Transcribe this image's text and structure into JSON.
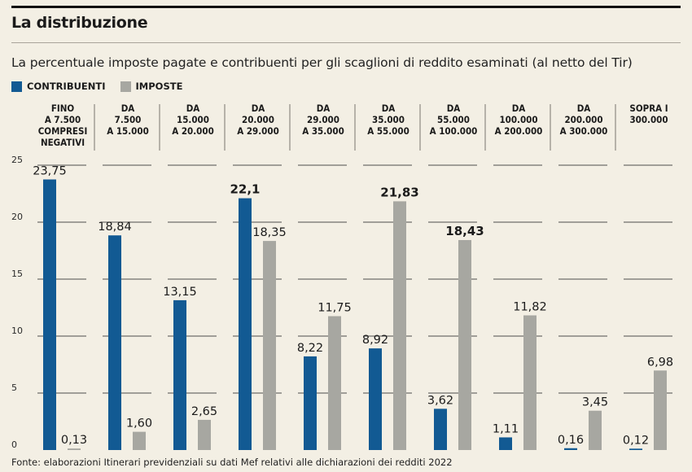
{
  "header": {
    "title": "La distribuzione",
    "subtitle": "La percentuale imposte pagate e contribuenti per gli scaglioni di reddito esaminati (al netto del Tir)"
  },
  "legend": {
    "contribuenti": "CONTRIBUENTI",
    "imposte": "IMPOSTE"
  },
  "colors": {
    "contribuenti": "#125a93",
    "imposte": "#a7a7a1",
    "grid": "#4d4d4d",
    "divider": "#7a766e"
  },
  "footer": {
    "source": "Fonte: elaborazioni Itinerari previdenziali su dati Mef relativi alle dichiarazioni dei redditi 2022"
  },
  "chart_data": {
    "type": "bar",
    "categories": [
      [
        "FINO",
        "A 7.500",
        "COMPRESI",
        "NEGATIVI"
      ],
      [
        "DA",
        "7.500",
        "A 15.000"
      ],
      [
        "DA",
        "15.000",
        "A 20.000"
      ],
      [
        "DA",
        "20.000",
        "A 29.000"
      ],
      [
        "DA",
        "29.000",
        "A 35.000"
      ],
      [
        "DA",
        "35.000",
        "A 55.000"
      ],
      [
        "DA",
        "55.000",
        "A 100.000"
      ],
      [
        "DA",
        "100.000",
        "A 200.000"
      ],
      [
        "DA",
        "200.000",
        "A 300.000"
      ],
      [
        "SOPRA I",
        "300.000"
      ]
    ],
    "series": [
      {
        "name": "CONTRIBUENTI",
        "values": [
          23.75,
          18.84,
          13.15,
          22.1,
          8.22,
          8.92,
          3.62,
          1.11,
          0.16,
          0.12
        ],
        "labels": [
          "23,75",
          "18,84",
          "13,15",
          "22,1",
          "8,22",
          "8,92",
          "3,62",
          "1,11",
          "0,16",
          "0,12"
        ],
        "bold": [
          false,
          false,
          false,
          true,
          false,
          false,
          false,
          false,
          false,
          false
        ]
      },
      {
        "name": "IMPOSTE",
        "values": [
          0.13,
          1.6,
          2.65,
          18.35,
          11.75,
          21.83,
          18.43,
          11.82,
          3.45,
          6.98
        ],
        "labels": [
          "0,13",
          "1,60",
          "2,65",
          "18,35",
          "11,75",
          "21,83",
          "18,43",
          "11,82",
          "3,45",
          "6,98"
        ],
        "bold": [
          false,
          false,
          false,
          false,
          false,
          true,
          true,
          false,
          false,
          false
        ]
      }
    ],
    "yticks": [
      {
        "value": 0,
        "label": "0"
      },
      {
        "value": 5,
        "label": "5"
      },
      {
        "value": 10,
        "label": "10"
      },
      {
        "value": 15,
        "label": "15"
      },
      {
        "value": 20,
        "label": "20"
      },
      {
        "value": 25,
        "label": "25"
      }
    ],
    "ylim": [
      0,
      25
    ],
    "grid": true,
    "legend_position": "top-left"
  }
}
